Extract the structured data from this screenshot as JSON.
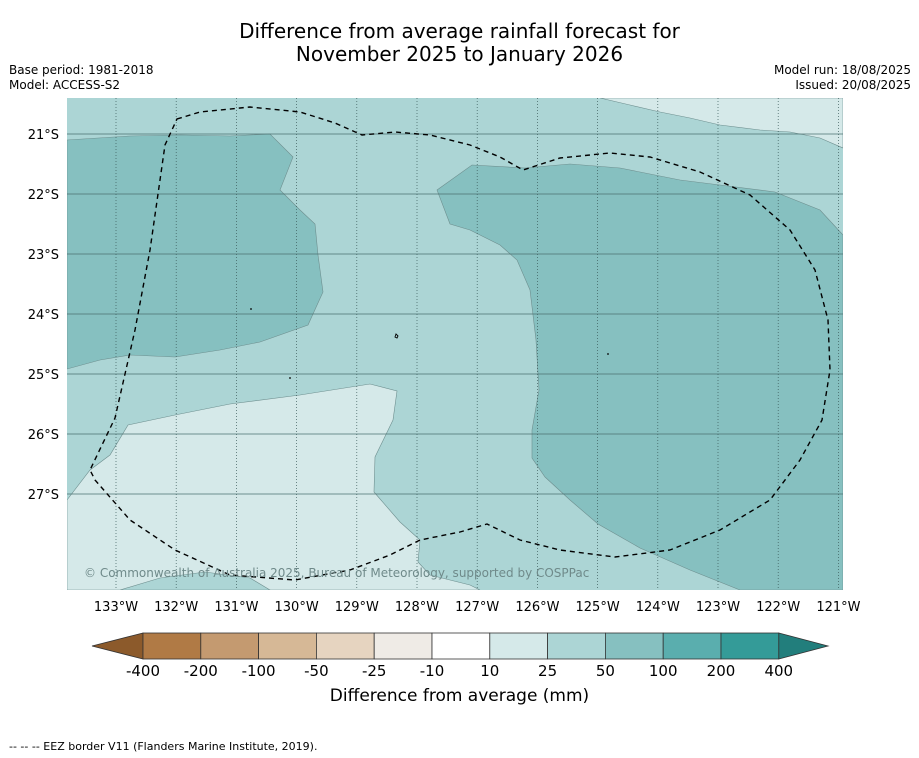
{
  "title_line1": "Difference from average rainfall forecast for",
  "title_line2": "November 2025 to January 2026",
  "base_period": "Base period: 1981-2018",
  "model": "Model: ACCESS-S2",
  "model_run": "Model run: 18/08/2025",
  "issued": "Issued: 20/08/2025",
  "copyright": "© Commonwealth of Australia 2025, Bureau of Meteorology, supported by COSPPac",
  "footer": "--  --  -- EEZ border V11 (Flanders Marine Institute, 2019).",
  "colorbar": {
    "title": "Difference from average (mm)",
    "ticks": [
      "-400",
      "-200",
      "-100",
      "-50",
      "-25",
      "-10",
      "10",
      "25",
      "50",
      "100",
      "200",
      "400"
    ],
    "colors": [
      "#8c5a2b",
      "#b07a45",
      "#c49a70",
      "#d6b896",
      "#e6d4c0",
      "#efebe6",
      "#ffffff",
      "#d5e9e9",
      "#acd5d5",
      "#86c0c0",
      "#5aaeae",
      "#349b98",
      "#227e7c"
    ]
  },
  "map": {
    "lon_labels": [
      "133°W",
      "132°W",
      "131°W",
      "130°W",
      "129°W",
      "128°W",
      "127°W",
      "126°W",
      "125°W",
      "124°W",
      "123°W",
      "122°W",
      "121°W"
    ],
    "lat_labels": [
      "21°S",
      "22°S",
      "23°S",
      "24°S",
      "25°S",
      "26°S",
      "27°S"
    ],
    "zone_colors": {
      "c25_50": "#acd5d5",
      "c50_100": "#86c0c0",
      "c10_25": "#d5e9e9"
    }
  }
}
